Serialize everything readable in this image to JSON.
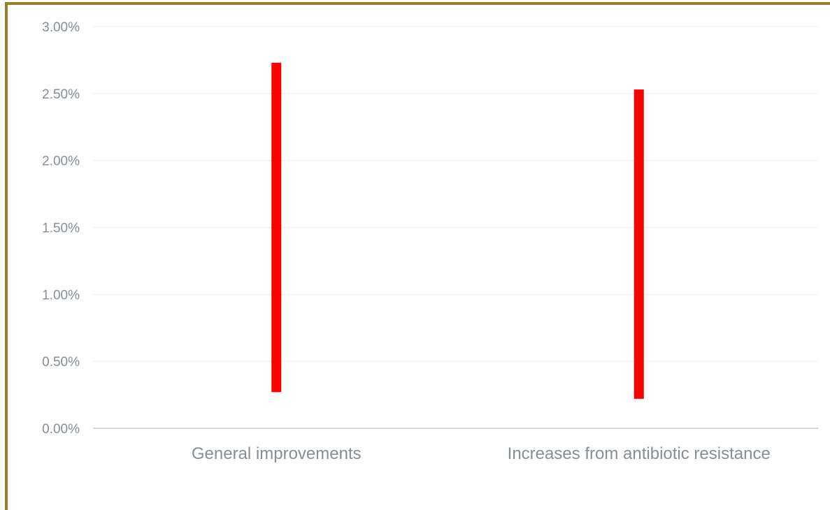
{
  "colors": {
    "frame": "#9b7d22",
    "bar": "#ff0000",
    "grid": "#eeeeee",
    "axis": "#cccccc",
    "text": "#868e96"
  },
  "chart_data": {
    "type": "range-bar",
    "categories": [
      "General improvements",
      "Increases from antibiotic resistance"
    ],
    "series": [
      {
        "low": [
          0.0027,
          0.0022
        ],
        "high": [
          0.0273,
          0.0253
        ]
      }
    ],
    "ylim": [
      0,
      0.03
    ],
    "yticks": [
      "0.00%",
      "0.50%",
      "1.00%",
      "1.50%",
      "2.00%",
      "2.50%",
      "3.00%"
    ],
    "grid": true,
    "legend": "none"
  }
}
